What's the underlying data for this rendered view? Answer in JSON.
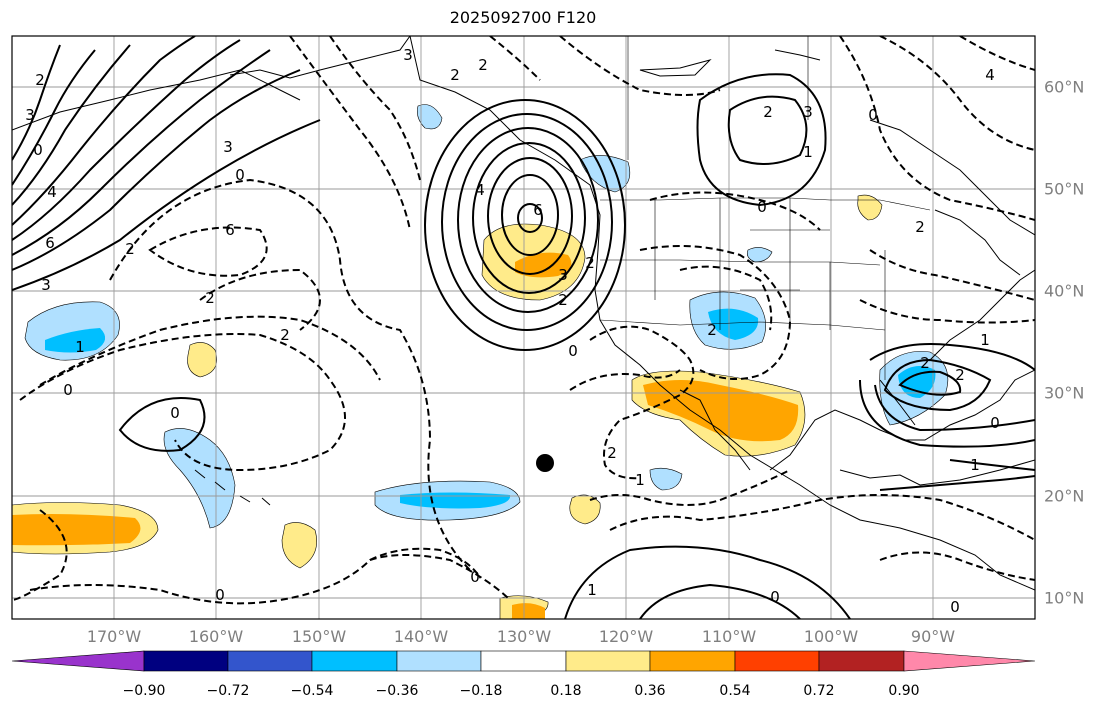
{
  "title": "2025092700 F120",
  "lon_labels": [
    "170°W",
    "160°W",
    "150°W",
    "140°W",
    "130°W",
    "120°W",
    "110°W",
    "100°W",
    "90°W"
  ],
  "lat_labels": [
    "60°N",
    "50°N",
    "40°N",
    "30°N",
    "20°N",
    "10°N"
  ],
  "colorbar": {
    "ticks": [
      "−0.90",
      "−0.72",
      "−0.54",
      "−0.36",
      "−0.18",
      "0.18",
      "0.36",
      "0.54",
      "0.72",
      "0.90"
    ],
    "colors": [
      "#9933cc",
      "#000080",
      "#3355cc",
      "#00bfff",
      "#b0e0ff",
      "#ffffff",
      "#ffeb8a",
      "#ffa500",
      "#ff4000",
      "#b22222",
      "#ff88aa"
    ]
  },
  "contour_labels": [
    "2",
    "3",
    "6",
    "0",
    "2",
    "4",
    "3",
    "6",
    "2",
    "1",
    "0",
    "3",
    "2",
    "2",
    "0",
    "0",
    "3",
    "6",
    "4",
    "2",
    "2",
    "2",
    "0",
    "2",
    "2",
    "0",
    "1",
    "1",
    "0",
    "2",
    "3",
    "2",
    "2",
    "1",
    "0",
    "0",
    "0",
    "1",
    "0",
    "2",
    "0",
    "1",
    "4",
    "3"
  ],
  "storm_marker": {
    "lon": -128.7,
    "lat": 23.0
  }
}
